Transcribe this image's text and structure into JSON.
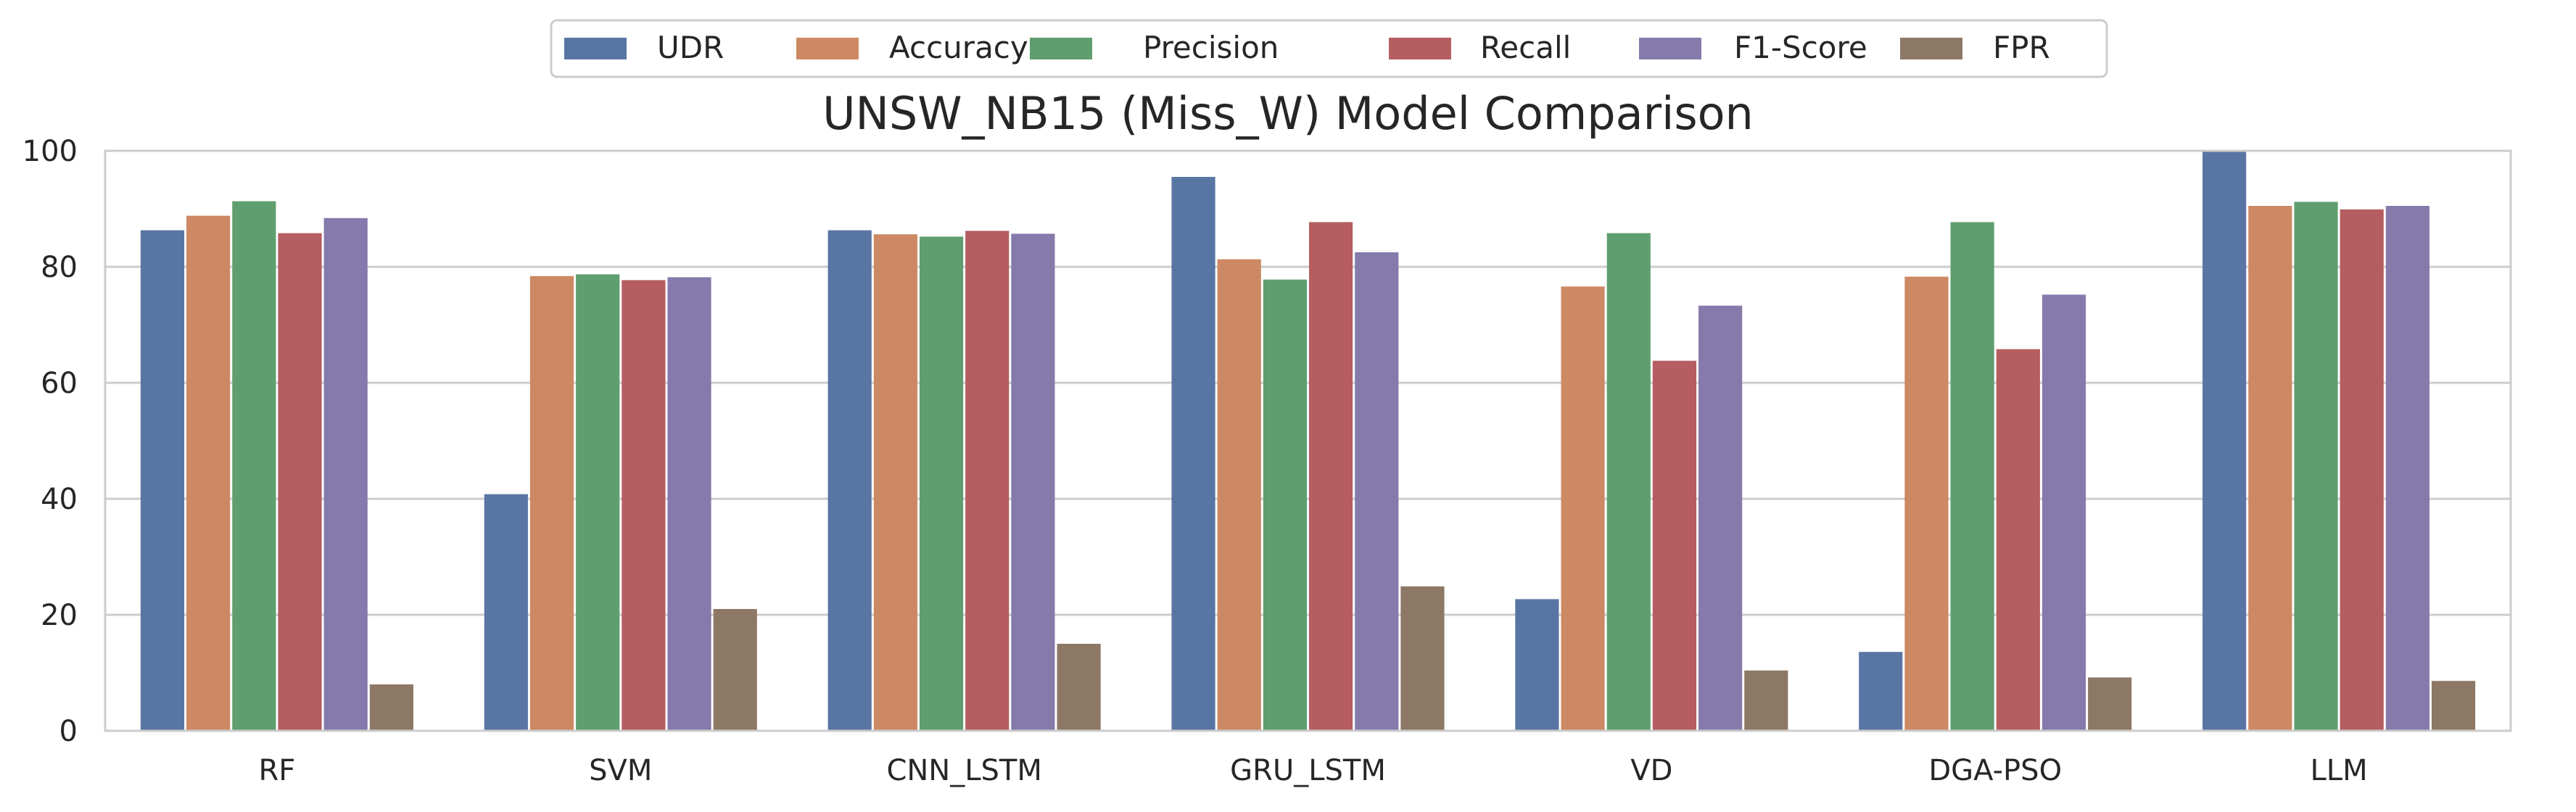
{
  "chart_data": {
    "type": "bar",
    "title": "UNSW_NB15 (Miss_W) Model Comparison",
    "xlabel": "",
    "ylabel": "",
    "ylim": [
      0,
      100
    ],
    "yticks": [
      0,
      20,
      40,
      60,
      80,
      100
    ],
    "grid": "y",
    "legend_position": "top-center",
    "categories": [
      "RF",
      "SVM",
      "CNN_LSTM",
      "GRU_LSTM",
      "VD",
      "DGA-PSO",
      "LLM"
    ],
    "series": [
      {
        "name": "UDR",
        "color": "#5975a4",
        "values": [
          86.3,
          40.8,
          86.3,
          95.5,
          22.7,
          13.6,
          100.0
        ]
      },
      {
        "name": "Accuracy",
        "color": "#cc8963",
        "values": [
          88.8,
          78.4,
          85.6,
          81.3,
          76.6,
          78.3,
          90.5
        ]
      },
      {
        "name": "Precision",
        "color": "#5f9e6e",
        "values": [
          91.3,
          78.7,
          85.2,
          77.8,
          85.8,
          87.7,
          91.2
        ]
      },
      {
        "name": "Recall",
        "color": "#b55d60",
        "values": [
          85.8,
          77.7,
          86.2,
          87.7,
          63.8,
          65.8,
          89.9
        ]
      },
      {
        "name": "F1-Score",
        "color": "#857aab",
        "values": [
          88.4,
          78.2,
          85.7,
          82.5,
          73.3,
          75.2,
          90.5
        ]
      },
      {
        "name": "FPR",
        "color": "#8d7866",
        "values": [
          8.0,
          21.0,
          15.0,
          24.9,
          10.4,
          9.2,
          8.6
        ]
      }
    ]
  }
}
